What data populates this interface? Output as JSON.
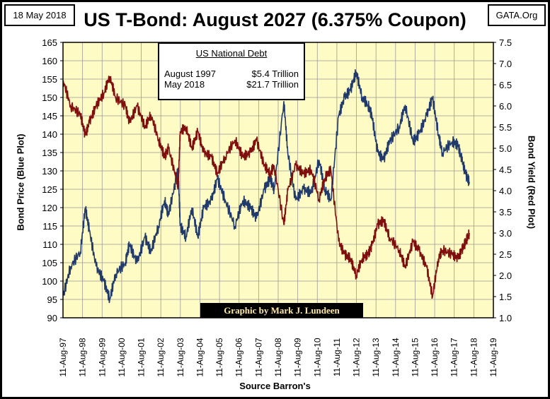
{
  "header": {
    "date": "18 May 2018",
    "source_site": "GATA.Org",
    "title": "US T-Bond: August 2027 (6.375% Coupon)"
  },
  "legend": {
    "title": "US National Debt",
    "rows": [
      {
        "label": "August 1997",
        "value": "$5.4 Trillion"
      },
      {
        "label": "May 2018",
        "value": "$21.7 Trillion"
      }
    ]
  },
  "credit": "Graphic by Mark J. Lundeen",
  "footer": "Source Barron's",
  "colors": {
    "price": "#1f3a6b",
    "yield": "#7f0f0f",
    "plot_bg": "#fffbc4",
    "grid": "#9a9a9a"
  },
  "chart_data": {
    "type": "line",
    "title": "US T-Bond: August 2027 (6.375% Coupon)",
    "xlabel": "Source Barron's",
    "ylabel": "Bond Price  (Blue Plot)",
    "y2label": "Bond Yield  (Red Plot)",
    "xlim": [
      1997.61,
      2019.61
    ],
    "ylim": [
      90,
      165
    ],
    "y2lim": [
      1.0,
      7.5
    ],
    "grid": true,
    "x_ticks": [
      "11-Aug-97",
      "11-Aug-98",
      "11-Aug-99",
      "11-Aug-00",
      "11-Aug-01",
      "11-Aug-02",
      "11-Aug-03",
      "11-Aug-04",
      "11-Aug-05",
      "11-Aug-06",
      "11-Aug-07",
      "11-Aug-08",
      "11-Aug-09",
      "11-Aug-10",
      "11-Aug-11",
      "11-Aug-12",
      "11-Aug-13",
      "11-Aug-14",
      "11-Aug-15",
      "11-Aug-16",
      "11-Aug-17",
      "11-Aug-18",
      "11-Aug-19"
    ],
    "y_ticks": [
      "90",
      "95",
      "100",
      "105",
      "110",
      "115",
      "120",
      "125",
      "130",
      "135",
      "140",
      "145",
      "150",
      "155",
      "160",
      "165"
    ],
    "y2_ticks": [
      "1.0",
      "1.5",
      "2.0",
      "2.5",
      "3.0",
      "3.5",
      "4.0",
      "4.5",
      "5.0",
      "5.5",
      "6.0",
      "6.5",
      "7.0",
      "7.5"
    ],
    "series": [
      {
        "name": "Bond Price",
        "axis": "left",
        "x": [
          1997.62,
          1998.0,
          1998.5,
          1998.75,
          1998.95,
          1999.3,
          1999.7,
          2000.0,
          2000.3,
          2000.8,
          2001.0,
          2001.4,
          2001.8,
          2002.1,
          2002.5,
          2002.8,
          2003.0,
          2003.4,
          2003.5,
          2003.6,
          2003.9,
          2004.2,
          2004.5,
          2004.8,
          2005.2,
          2005.5,
          2005.9,
          2006.4,
          2006.8,
          2007.2,
          2007.5,
          2007.9,
          2008.2,
          2008.4,
          2008.9,
          2009.1,
          2009.5,
          2009.9,
          2010.3,
          2010.7,
          2011.0,
          2011.3,
          2011.7,
          2012.0,
          2012.3,
          2012.6,
          2012.9,
          2013.2,
          2013.4,
          2013.7,
          2014.0,
          2014.3,
          2014.8,
          2015.1,
          2015.5,
          2015.8,
          2016.2,
          2016.5,
          2016.8,
          2017.0,
          2017.5,
          2017.8,
          2018.0,
          2018.2,
          2018.38
        ],
        "values": [
          96,
          104,
          108,
          120,
          114,
          104,
          100,
          95,
          102,
          105,
          110,
          105,
          112,
          108,
          115,
          122,
          118,
          128,
          130,
          115,
          112,
          120,
          112,
          120,
          122,
          128,
          122,
          115,
          122,
          120,
          117,
          125,
          128,
          125,
          149,
          135,
          122,
          125,
          124,
          133,
          125,
          122,
          145,
          150,
          152,
          157,
          150,
          148,
          145,
          135,
          133,
          138,
          142,
          148,
          138,
          140,
          145,
          150,
          140,
          135,
          138,
          137,
          133,
          129,
          127
        ]
      },
      {
        "name": "Bond Yield",
        "axis": "right",
        "x": [
          1997.62,
          1998.0,
          1998.5,
          1998.75,
          1998.95,
          1999.3,
          1999.7,
          2000.0,
          2000.3,
          2000.8,
          2001.0,
          2001.4,
          2001.8,
          2002.1,
          2002.5,
          2002.8,
          2003.0,
          2003.4,
          2003.5,
          2003.6,
          2003.9,
          2004.2,
          2004.5,
          2004.8,
          2005.2,
          2005.5,
          2005.9,
          2006.4,
          2006.8,
          2007.2,
          2007.5,
          2007.9,
          2008.2,
          2008.4,
          2008.9,
          2009.1,
          2009.5,
          2009.9,
          2010.3,
          2010.7,
          2011.0,
          2011.3,
          2011.7,
          2012.0,
          2012.3,
          2012.6,
          2012.9,
          2013.2,
          2013.4,
          2013.7,
          2014.0,
          2014.3,
          2014.8,
          2015.1,
          2015.5,
          2015.8,
          2016.2,
          2016.5,
          2016.8,
          2017.0,
          2017.5,
          2017.8,
          2018.0,
          2018.2,
          2018.38
        ],
        "values": [
          6.6,
          6.0,
          5.8,
          5.3,
          5.6,
          6.0,
          6.3,
          6.7,
          6.2,
          6.0,
          5.6,
          6.0,
          5.5,
          5.8,
          5.2,
          4.8,
          5.0,
          4.3,
          4.1,
          5.4,
          5.5,
          5.0,
          5.4,
          4.9,
          4.8,
          4.4,
          4.8,
          5.2,
          4.8,
          4.9,
          5.2,
          4.6,
          4.4,
          4.6,
          3.2,
          4.0,
          4.6,
          4.4,
          4.5,
          3.8,
          4.3,
          4.5,
          2.8,
          2.5,
          2.4,
          2.0,
          2.4,
          2.5,
          2.7,
          3.2,
          3.3,
          2.9,
          2.6,
          2.2,
          2.8,
          2.6,
          2.2,
          1.5,
          2.4,
          2.6,
          2.5,
          2.4,
          2.6,
          2.8,
          3.0
        ]
      }
    ]
  }
}
